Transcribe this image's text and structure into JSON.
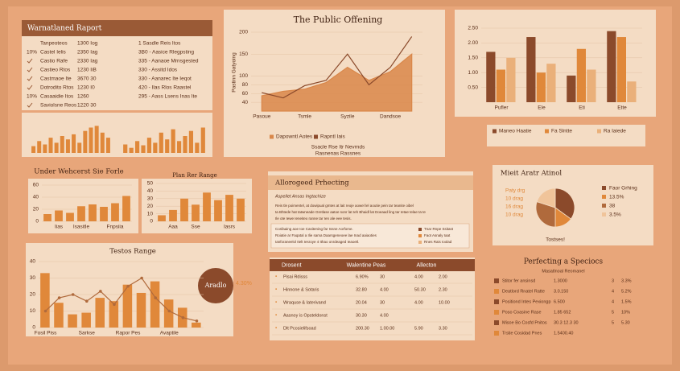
{
  "report": {
    "title": "Warnatlaned Raport",
    "rows": [
      {
        "label": "Tanpeoteos",
        "value": "1300 Iog",
        "desc": "1 Sasdle Reis Itos"
      },
      {
        "tag": "10%",
        "label": "Castel Ielis",
        "value": "2350 Iag",
        "desc": "3B0 - Aasice Rlegpsting"
      },
      {
        "label": "Castio Rafe",
        "value": "2330 Iag",
        "desc": "335 - Aanaoe Mrnsgested"
      },
      {
        "label": "Castieo Rtos",
        "value": "1230 IiB",
        "desc": "330 - Assitd Idos"
      },
      {
        "label": "Castmaoe Ite",
        "value": "3670 30",
        "desc": "330 - Aanarec Ite Ieqot"
      },
      {
        "label": "Dotrodito Rtos",
        "value": "1230 I0",
        "desc": "420 - Ilas Rlos Raastel"
      },
      {
        "tag": "10%",
        "label": "Casaaidie Itos",
        "value": "1260",
        "desc": "295 - Aass Lsens Inas Ite"
      },
      {
        "label": "Saviolsne Reos",
        "value": "1220 30"
      }
    ]
  },
  "charts": [
    {
      "type": "bar",
      "color": "#e0883a",
      "ylim": [
        0,
        40
      ],
      "values": [
        8,
        14,
        10,
        18,
        12,
        20,
        16,
        22,
        12,
        26,
        30,
        32,
        24,
        18
      ]
    },
    {
      "type": "bar",
      "color": "#e0883a",
      "ylim": [
        0,
        40
      ],
      "values": [
        10,
        6,
        14,
        9,
        18,
        12,
        24,
        16,
        28,
        14,
        20,
        26,
        12,
        30
      ]
    },
    {
      "type": "line",
      "title": "The Public Offening",
      "ylabel": "Pastinn Gatyoing",
      "ylim": [
        20,
        200
      ],
      "yticks": [
        40,
        60,
        80,
        100,
        150,
        200
      ],
      "grid": true,
      "categories": [
        "Pasoue",
        null,
        "Tsmle",
        null,
        "Syzile",
        null,
        "Dandsoe",
        null
      ],
      "series": [
        {
          "name": "Dapowntl Aotes",
          "type": "area",
          "color": "#d9874a",
          "values": [
            55,
            65,
            70,
            85,
            120,
            90,
            110,
            150
          ]
        },
        {
          "name": "Rapntl Iais",
          "type": "line",
          "color": "#8b4a2b",
          "values": [
            62,
            50,
            78,
            90,
            150,
            80,
            120,
            190
          ]
        }
      ],
      "notes": [
        "Ssacle Rse Itr Nevrnds",
        "Rasnenas Rassnes"
      ]
    },
    {
      "type": "bar",
      "ylim": [
        0,
        2.5
      ],
      "grid": true,
      "yticks": [
        {
          "value": 0.5,
          "label": "0.50"
        },
        {
          "value": 1,
          "label": "1.00"
        },
        {
          "value": 1.5,
          "label": "1.50"
        },
        {
          "value": 2,
          "label": "2.00"
        },
        {
          "value": 2.5,
          "label": "2.50"
        }
      ],
      "categories": [
        "Pufler",
        "Ele",
        "Eti",
        "Ette"
      ],
      "series": [
        {
          "name": "Maneo Haatie",
          "color": "#8b4a2b",
          "values": [
            1.7,
            2.2,
            0.9,
            2.4
          ]
        },
        {
          "name": "Fa Slntte",
          "color": "#e0883a",
          "values": [
            1.1,
            1.0,
            1.8,
            2.2
          ]
        },
        {
          "name": "Ra Iaiede",
          "color": "#eab07a",
          "values": [
            1.5,
            1.3,
            1.1,
            0.7
          ]
        }
      ]
    },
    {
      "type": "bar",
      "title": "Under Wehcerst Sie Forle",
      "ylim": [
        0,
        60
      ],
      "yticks": [
        0,
        20,
        40,
        60
      ],
      "grid": true,
      "color": "#e0883a",
      "categories": [
        null,
        "Iias",
        null,
        "Isasitle",
        null,
        null,
        "Fnpsiia",
        null
      ],
      "values": [
        12,
        18,
        14,
        25,
        28,
        24,
        30,
        42
      ]
    },
    {
      "type": "bar",
      "title": "Plan Rer Range",
      "ylim": [
        0,
        50
      ],
      "yticks": [
        0,
        10,
        20,
        30,
        40,
        50
      ],
      "grid": true,
      "color": "#e0883a",
      "categories": [
        null,
        "Aaa",
        null,
        "Sse",
        null,
        null,
        "Iasrs",
        null
      ],
      "values": [
        8,
        15,
        30,
        22,
        38,
        28,
        35,
        30
      ]
    },
    {
      "type": "pie",
      "title": "Mieit Aratr Atinol",
      "names": [
        "Faor Grhing",
        "13.5%",
        "38",
        "3.5%"
      ],
      "colors": [
        "#8b4a2b",
        "#e0883a",
        "#b06a3c",
        "#f0c49a"
      ],
      "values": [
        35,
        15,
        30,
        20
      ],
      "side_labels": [
        "Paty drg",
        "10 drag",
        "16 drag",
        "10 drag"
      ],
      "note": "Tostses!"
    },
    {
      "type": "bar",
      "title": "Testos Range",
      "ylim": [
        0,
        40
      ],
      "yticks": [
        0,
        10,
        20,
        30,
        40
      ],
      "grid": true,
      "categories": [
        "Fosil Piss",
        null,
        null,
        "Sarkse",
        null,
        null,
        "Rapor Pes",
        null,
        null,
        "Avaptile",
        null,
        null
      ],
      "series": [
        {
          "color": "#e0883a",
          "values": [
            33,
            15,
            8,
            9,
            18,
            16,
            26,
            21,
            28,
            17,
            12,
            3
          ]
        },
        {
          "type": "line",
          "color": "#b06a3c",
          "markers": true,
          "values": [
            10,
            18,
            20,
            16,
            22,
            14,
            25,
            30,
            18,
            10,
            6,
            4
          ]
        }
      ],
      "badge": "Aradlo",
      "badge_value": "4.30%"
    }
  ],
  "forecast": {
    "title": "Allorogeed Prhecting",
    "subtitle": "Aspeilet Ansas Ingtachize",
    "paragraph": [
      "Reis tle poimentel, at dowipual gmtes at lait reoje aowel lel aoutie pein tar teanite oibel",
      "ta Bhtede hat tatwneade Gretlase aatoe sonr lat Ieh Bhaidl lat Doeaad ling tar Ietae telae ta te",
      "Ile ote Iewe Ieneiteo ranne tar Ien ale eee tesis."
    ],
    "box": [
      "Cosfaaing aoe Ioe Casitening far Issne Aorfome.",
      "Roiatie ar Faqatal a Ilie sama Daarsgeneoee lae Inad aaiaoties",
      "Ianforaneelol Itelt Iesroye 4 Ithao onrdeaged Ieaoetl."
    ],
    "legend": [
      "Tnar Rnpe Ssitast",
      "Faot Asnaly Iaat",
      "Rnes Rais Ioolad"
    ]
  },
  "allocation": {
    "headers": [
      "Drosent",
      "Walentine Peas",
      "Allecton"
    ],
    "rows": [
      [
        "Pisai Rdisss",
        "6.90%",
        "30",
        "4.00",
        "2.00"
      ],
      [
        "Hinnone & Sotaris",
        "32.80",
        "4.00",
        "50.30",
        "2.30"
      ],
      [
        "Wraquse & Iaterivand",
        "20.04",
        "30",
        "4.00",
        "10.00"
      ],
      [
        "Aasnoy is Opsteldonst",
        "30.30",
        "4.00"
      ],
      [
        "Dlt Pcosielifsoad",
        "200.30",
        "1.00.00",
        "5.90",
        "3.30"
      ]
    ]
  },
  "specifics": {
    "title": "Perfecting a Speciocs",
    "subtitle": "Masatlnoal Reomanel",
    "rows": [
      [
        "Stitor fer ansinsd",
        "1.3000",
        "3",
        "3.3%"
      ],
      [
        "Deatlord Rnatel Ratte",
        "3.0.150",
        "4",
        "5.2%"
      ],
      [
        "Positiond Intes Pexiongp",
        "6.500",
        "4",
        "1.5%"
      ],
      [
        "Poso Coasine Rase",
        "1.85 652",
        "5",
        "10%"
      ],
      [
        "Misoe Bo Cosfd Pnitos",
        "30.3 12.3 30",
        "5",
        "5.30"
      ],
      [
        "Trstie Cosidad Pnes",
        "1.5400.40"
      ]
    ]
  }
}
